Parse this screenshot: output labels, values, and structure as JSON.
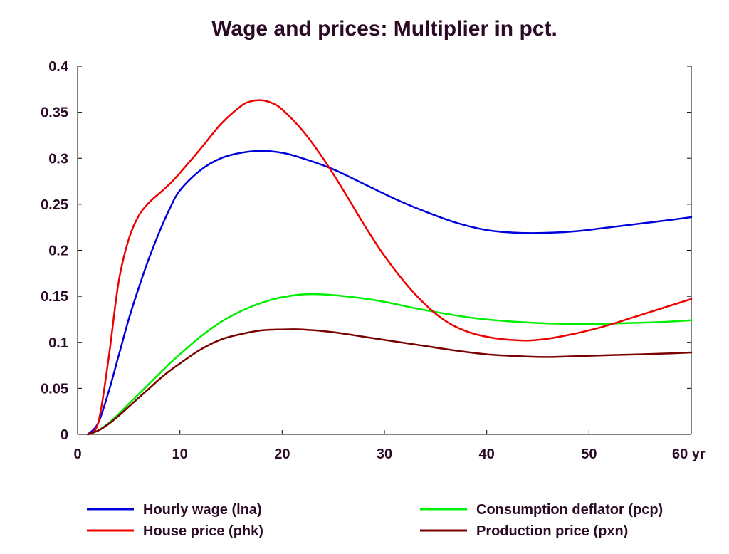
{
  "chart_data": {
    "type": "line",
    "title": "Wage and prices: Multiplier in pct.",
    "xlim": [
      0,
      60
    ],
    "ylim": [
      0,
      0.4
    ],
    "x_ticks": [
      0,
      10,
      20,
      30,
      40,
      50,
      60
    ],
    "x_tick_labels": [
      "0",
      "10",
      "20",
      "30",
      "40",
      "50",
      "60 yr"
    ],
    "y_ticks": [
      0,
      0.05,
      0.1,
      0.15,
      0.2,
      0.25,
      0.3,
      0.35,
      0.4
    ],
    "y_tick_labels": [
      "0",
      "0.05",
      "0.1",
      "0.15",
      "0.2",
      "0.25",
      "0.3",
      "0.35",
      "0.4"
    ],
    "grid": false,
    "legend_position": "bottom",
    "series": [
      {
        "name": "Hourly wage (lna)",
        "color": "#0000dd",
        "points": [
          [
            1,
            0
          ],
          [
            2,
            0.012
          ],
          [
            3,
            0.045
          ],
          [
            4,
            0.085
          ],
          [
            5,
            0.125
          ],
          [
            6,
            0.16
          ],
          [
            7,
            0.192
          ],
          [
            8,
            0.22
          ],
          [
            9,
            0.245
          ],
          [
            10,
            0.265
          ],
          [
            12,
            0.287
          ],
          [
            14,
            0.3
          ],
          [
            16,
            0.306
          ],
          [
            18,
            0.308
          ],
          [
            20,
            0.306
          ],
          [
            22,
            0.3
          ],
          [
            25,
            0.288
          ],
          [
            28,
            0.272
          ],
          [
            31,
            0.256
          ],
          [
            34,
            0.242
          ],
          [
            37,
            0.23
          ],
          [
            40,
            0.222
          ],
          [
            43,
            0.219
          ],
          [
            46,
            0.219
          ],
          [
            49,
            0.221
          ],
          [
            52,
            0.225
          ],
          [
            55,
            0.229
          ],
          [
            58,
            0.233
          ],
          [
            60,
            0.236
          ]
        ]
      },
      {
        "name": "Consumption deflator (pcp)",
        "color": "#00ee00",
        "points": [
          [
            1,
            0
          ],
          [
            2,
            0.004
          ],
          [
            3,
            0.012
          ],
          [
            4,
            0.022
          ],
          [
            5,
            0.033
          ],
          [
            6,
            0.044
          ],
          [
            7,
            0.055
          ],
          [
            8,
            0.066
          ],
          [
            9,
            0.077
          ],
          [
            10,
            0.087
          ],
          [
            12,
            0.106
          ],
          [
            14,
            0.122
          ],
          [
            16,
            0.134
          ],
          [
            18,
            0.143
          ],
          [
            20,
            0.149
          ],
          [
            22,
            0.152
          ],
          [
            24,
            0.152
          ],
          [
            27,
            0.149
          ],
          [
            30,
            0.144
          ],
          [
            33,
            0.137
          ],
          [
            36,
            0.131
          ],
          [
            39,
            0.126
          ],
          [
            42,
            0.123
          ],
          [
            45,
            0.121
          ],
          [
            48,
            0.12
          ],
          [
            51,
            0.12
          ],
          [
            54,
            0.121
          ],
          [
            57,
            0.122
          ],
          [
            60,
            0.124
          ]
        ]
      },
      {
        "name": "House price (phk)",
        "color": "#ee0000",
        "points": [
          [
            1,
            0
          ],
          [
            2,
            0.012
          ],
          [
            3,
            0.08
          ],
          [
            4,
            0.165
          ],
          [
            5,
            0.212
          ],
          [
            6,
            0.238
          ],
          [
            7,
            0.252
          ],
          [
            8,
            0.262
          ],
          [
            9,
            0.272
          ],
          [
            10,
            0.284
          ],
          [
            12,
            0.31
          ],
          [
            14,
            0.337
          ],
          [
            16,
            0.357
          ],
          [
            17,
            0.362
          ],
          [
            18,
            0.363
          ],
          [
            19,
            0.36
          ],
          [
            20,
            0.353
          ],
          [
            22,
            0.33
          ],
          [
            24,
            0.3
          ],
          [
            26,
            0.265
          ],
          [
            28,
            0.228
          ],
          [
            30,
            0.194
          ],
          [
            32,
            0.165
          ],
          [
            34,
            0.141
          ],
          [
            36,
            0.123
          ],
          [
            38,
            0.112
          ],
          [
            40,
            0.106
          ],
          [
            42,
            0.103
          ],
          [
            44,
            0.102
          ],
          [
            46,
            0.104
          ],
          [
            48,
            0.108
          ],
          [
            50,
            0.113
          ],
          [
            52,
            0.119
          ],
          [
            54,
            0.126
          ],
          [
            56,
            0.133
          ],
          [
            58,
            0.14
          ],
          [
            60,
            0.147
          ]
        ]
      },
      {
        "name": "Production price (pxn)",
        "color": "#7a0000",
        "points": [
          [
            1,
            0
          ],
          [
            2,
            0.004
          ],
          [
            3,
            0.011
          ],
          [
            4,
            0.02
          ],
          [
            5,
            0.03
          ],
          [
            6,
            0.04
          ],
          [
            7,
            0.05
          ],
          [
            8,
            0.06
          ],
          [
            9,
            0.069
          ],
          [
            10,
            0.077
          ],
          [
            12,
            0.092
          ],
          [
            14,
            0.103
          ],
          [
            16,
            0.109
          ],
          [
            18,
            0.113
          ],
          [
            20,
            0.114
          ],
          [
            22,
            0.114
          ],
          [
            25,
            0.111
          ],
          [
            28,
            0.106
          ],
          [
            31,
            0.101
          ],
          [
            34,
            0.096
          ],
          [
            37,
            0.091
          ],
          [
            40,
            0.087
          ],
          [
            43,
            0.085
          ],
          [
            46,
            0.084
          ],
          [
            49,
            0.085
          ],
          [
            52,
            0.086
          ],
          [
            55,
            0.087
          ],
          [
            58,
            0.088
          ],
          [
            60,
            0.089
          ]
        ]
      }
    ],
    "legend": [
      {
        "label": "Hourly wage (lna)",
        "color": "#0000dd",
        "column": 0,
        "row": 0
      },
      {
        "label": "House price (phk)",
        "color": "#ee0000",
        "column": 0,
        "row": 1
      },
      {
        "label": "Consumption deflator (pcp)",
        "color": "#00ee00",
        "column": 1,
        "row": 0
      },
      {
        "label": "Production price (pxn)",
        "color": "#7a0000",
        "column": 1,
        "row": 1
      }
    ]
  }
}
